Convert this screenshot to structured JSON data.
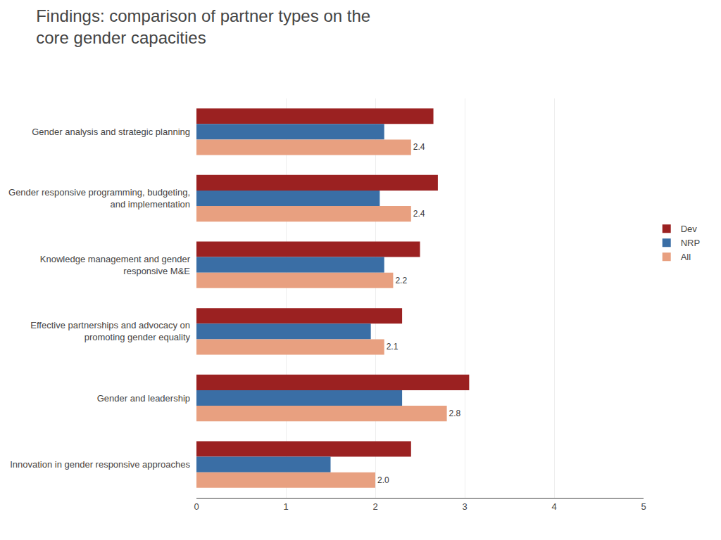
{
  "chart_data": {
    "type": "bar",
    "orientation": "horizontal",
    "title": "Findings: comparison of partner types on the\ncore gender capacities",
    "categories": [
      "Gender analysis and strategic planning",
      "Gender responsive programming, budgeting,\nand implementation",
      "Knowledge management and gender\nresponsive M&E",
      "Effective partnerships and advocacy on\npromoting gender equality",
      "Gender and leadership",
      "Innovation in gender responsive approaches"
    ],
    "series": [
      {
        "name": "Dev",
        "color": "#9B2121",
        "values": [
          2.65,
          2.7,
          2.5,
          2.3,
          3.05,
          2.4
        ]
      },
      {
        "name": "NRP",
        "color": "#3A6EA5",
        "values": [
          2.1,
          2.05,
          2.1,
          1.95,
          2.3,
          1.5
        ]
      },
      {
        "name": "All",
        "color": "#E8A080",
        "values": [
          2.4,
          2.4,
          2.2,
          2.1,
          2.8,
          2.0
        ],
        "data_labels": true,
        "value_labels": [
          "2.4",
          "2.4",
          "2.2",
          "2.1",
          "2.8",
          "2.0"
        ]
      }
    ],
    "xlim": [
      0,
      5
    ],
    "xticks": [
      0,
      1,
      2,
      3,
      4,
      5
    ],
    "grid": true,
    "legend": "right"
  }
}
